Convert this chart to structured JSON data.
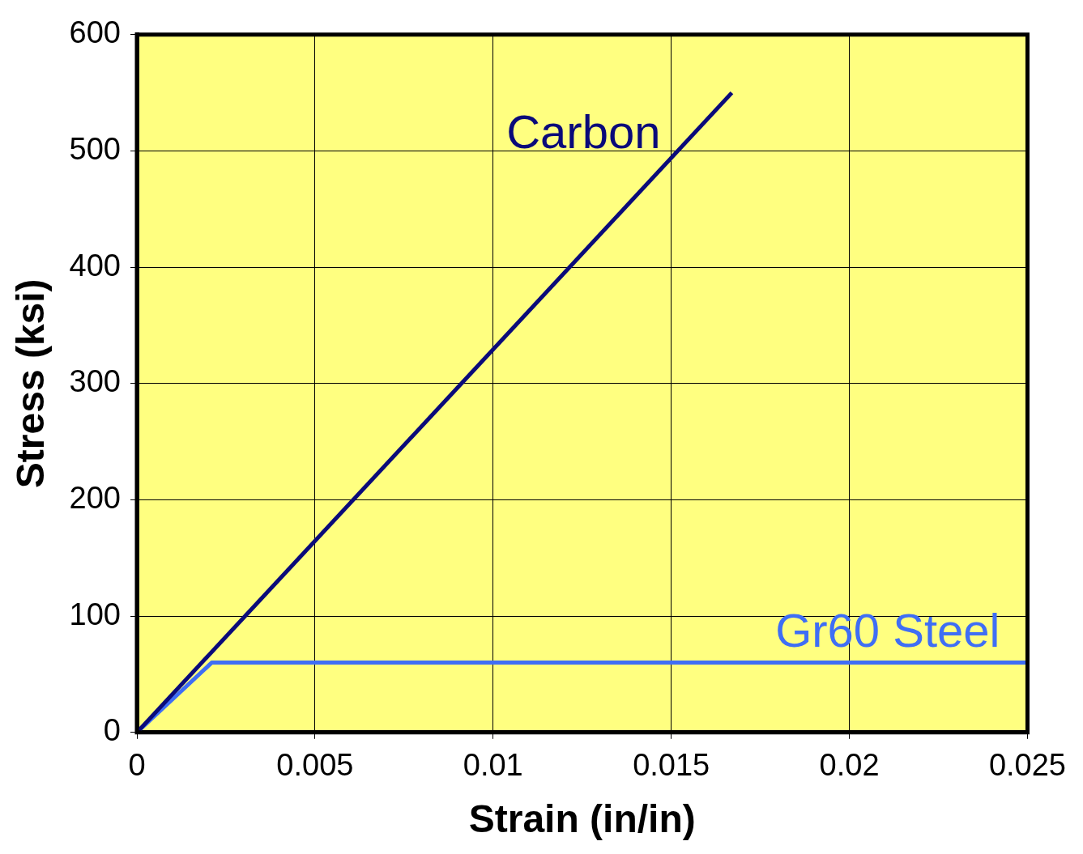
{
  "chart_data": {
    "type": "line",
    "xlabel": "Strain (in/in)",
    "ylabel": "Stress (ksi)",
    "xlim": [
      0,
      0.025
    ],
    "xticks": [
      0,
      0.005,
      0.01,
      0.015,
      0.02,
      0.025
    ],
    "ylim": [
      0,
      600
    ],
    "yticks": [
      0,
      100,
      200,
      300,
      400,
      500,
      600
    ],
    "grid": true,
    "legend": false,
    "marker": "none",
    "line_style": "solid",
    "series": [
      {
        "name": "Carbon",
        "color": "#0a0a7a",
        "x": [
          0,
          0.0167
        ],
        "values": [
          0,
          550
        ]
      },
      {
        "name": "Gr60 Steel",
        "color": "#3f6ef5",
        "x": [
          0,
          0.0021,
          0.025
        ],
        "values": [
          0,
          60,
          60
        ]
      }
    ]
  }
}
